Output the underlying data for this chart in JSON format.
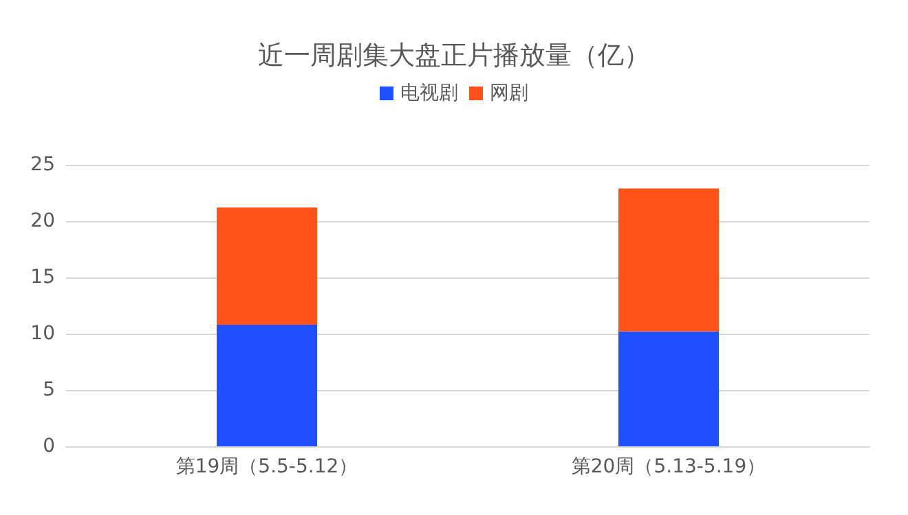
{
  "chart_data": {
    "type": "bar",
    "title": "近一周剧集大盘正片播放量（亿）",
    "categories": [
      "第19周（5.5-5.12）",
      "第20周（5.13-5.19）"
    ],
    "stacked": true,
    "series": [
      {
        "name": "电视剧",
        "color": "#1f4fff",
        "values": [
          10.8,
          10.2
        ]
      },
      {
        "name": "网剧",
        "color": "#ff5319",
        "values": [
          10.4,
          12.7
        ]
      }
    ],
    "ylim": [
      0,
      25
    ],
    "yticks": [
      0,
      5,
      10,
      15,
      20,
      25
    ],
    "grid": "y",
    "legend": "top"
  }
}
